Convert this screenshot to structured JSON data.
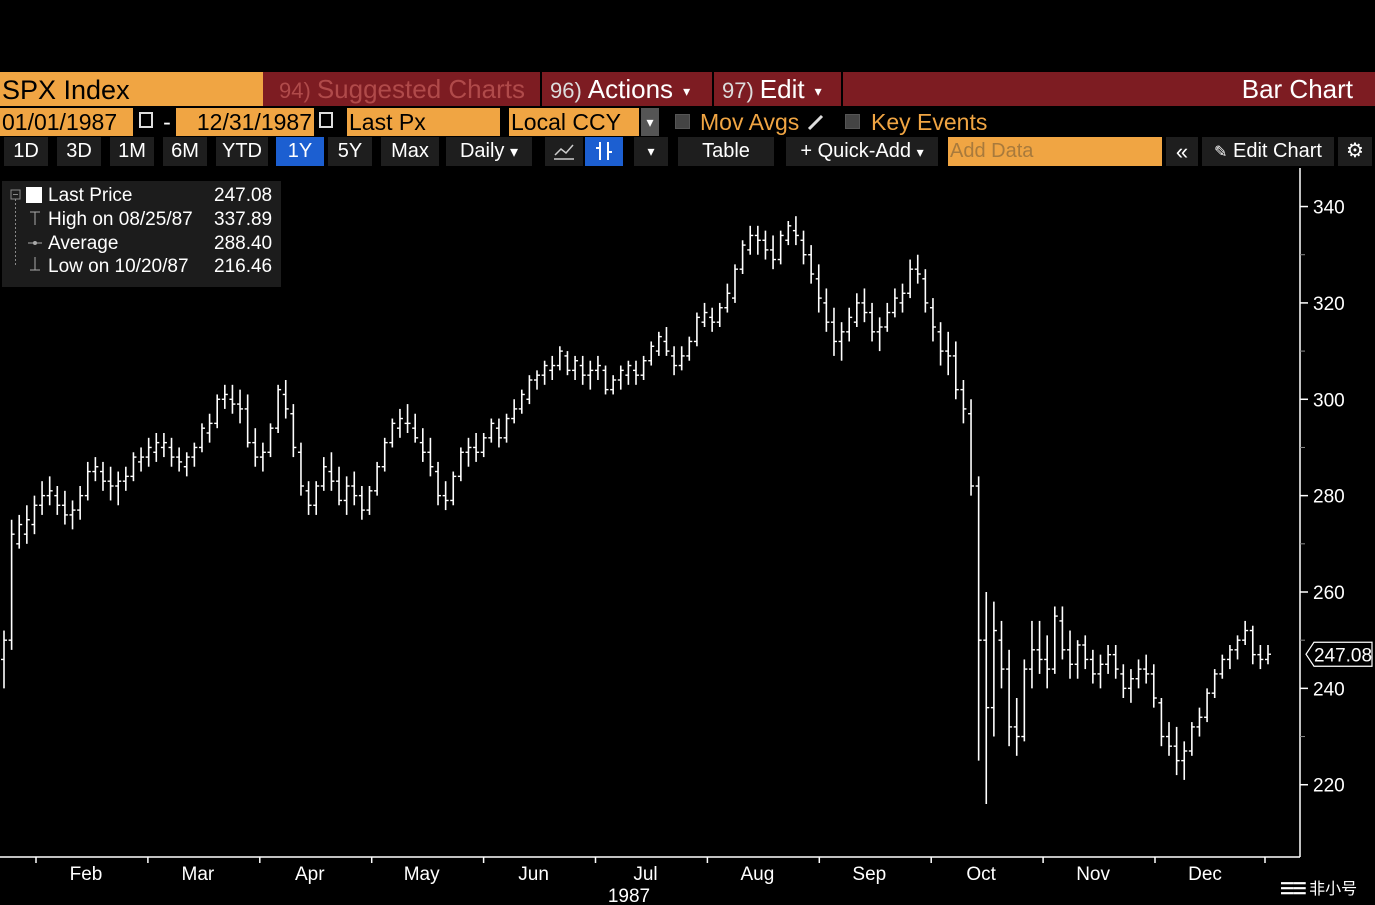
{
  "header": {
    "ticker": "SPX Index",
    "suggested_num": "94)",
    "suggested_label": "Suggested Charts",
    "actions_num": "96)",
    "actions_label": "Actions",
    "edit_num": "97)",
    "edit_label": "Edit",
    "chart_type": "Bar Chart",
    "caret": "▾"
  },
  "controls": {
    "start_date": "01/01/1987",
    "date_sep": "-",
    "end_date": "12/31/1987",
    "field": "Last Px",
    "currency": "Local CCY",
    "mov_avgs": "Mov Avgs",
    "key_events": "Key Events"
  },
  "toolbar": {
    "ranges": [
      "1D",
      "3D",
      "1M",
      "6M",
      "YTD",
      "1Y",
      "5Y",
      "Max"
    ],
    "selected_range": "1Y",
    "frequency": "Daily",
    "table": "Table",
    "quick_add": "+ Quick-Add",
    "add_data_placeholder": "Add Data",
    "edit_chart": "Edit Chart"
  },
  "legend": {
    "last_label": "Last Price",
    "last_value": "247.08",
    "high_label": "High on 08/25/87",
    "high_value": "337.89",
    "avg_label": "Average",
    "avg_value": "288.40",
    "low_label": "Low on 10/20/87",
    "low_value": "216.46"
  },
  "watermark": "非小号",
  "colors": {
    "accent_orange": "#f0a543",
    "header_red": "#7d1c22",
    "selected_blue": "#1c5fd1"
  },
  "chart_data": {
    "type": "bar",
    "title": "",
    "x_year_label": "1987",
    "month_labels": [
      "Feb",
      "Mar",
      "Apr",
      "May",
      "Jun",
      "Jul",
      "Aug",
      "Sep",
      "Oct",
      "Nov",
      "Dec"
    ],
    "yticks": [
      220,
      240,
      260,
      280,
      300,
      320,
      340
    ],
    "ylim": [
      205,
      348
    ],
    "last_price": 247.08,
    "series": [
      {
        "values": [
          [
            246,
            252,
            240,
            250
          ],
          [
            250,
            275,
            248,
            272
          ],
          [
            270,
            276,
            269,
            274
          ],
          [
            272,
            278,
            270,
            275
          ],
          [
            274,
            280,
            272,
            278
          ],
          [
            278,
            283,
            276,
            280
          ],
          [
            280,
            284,
            278,
            281
          ],
          [
            280,
            282,
            276,
            278
          ],
          [
            278,
            281,
            274,
            276
          ],
          [
            276,
            279,
            273,
            277
          ],
          [
            277,
            282,
            275,
            280
          ],
          [
            280,
            287,
            279,
            285
          ],
          [
            285,
            288,
            283,
            286
          ],
          [
            285,
            287,
            281,
            283
          ],
          [
            283,
            286,
            279,
            282
          ],
          [
            282,
            285,
            278,
            283
          ],
          [
            283,
            286,
            281,
            284
          ],
          [
            284,
            289,
            283,
            288
          ],
          [
            287,
            290,
            285,
            288
          ],
          [
            288,
            292,
            286,
            290
          ],
          [
            289,
            293,
            287,
            291
          ],
          [
            290,
            293,
            288,
            291
          ],
          [
            290,
            292,
            286,
            288
          ],
          [
            288,
            290,
            285,
            287
          ],
          [
            286,
            289,
            284,
            288
          ],
          [
            288,
            291,
            286,
            290
          ],
          [
            290,
            295,
            289,
            294
          ],
          [
            293,
            297,
            291,
            295
          ],
          [
            295,
            301,
            294,
            300
          ],
          [
            300,
            303,
            298,
            301
          ],
          [
            300,
            303,
            297,
            299
          ],
          [
            299,
            302,
            295,
            298
          ],
          [
            298,
            301,
            290,
            291
          ],
          [
            291,
            294,
            286,
            288
          ],
          [
            288,
            291,
            285,
            289
          ],
          [
            289,
            295,
            288,
            294
          ],
          [
            294,
            303,
            293,
            302
          ],
          [
            301,
            304,
            296,
            298
          ],
          [
            297,
            299,
            288,
            290
          ],
          [
            289,
            291,
            280,
            282
          ],
          [
            281,
            283,
            276,
            278
          ],
          [
            278,
            283,
            276,
            282
          ],
          [
            282,
            288,
            281,
            286
          ],
          [
            285,
            289,
            281,
            283
          ],
          [
            283,
            286,
            278,
            279
          ],
          [
            279,
            284,
            276,
            282
          ],
          [
            282,
            285,
            278,
            280
          ],
          [
            280,
            282,
            275,
            277
          ],
          [
            277,
            282,
            276,
            281
          ],
          [
            281,
            287,
            280,
            286
          ],
          [
            286,
            292,
            285,
            291
          ],
          [
            291,
            296,
            290,
            295
          ],
          [
            294,
            298,
            292,
            296
          ],
          [
            295,
            299,
            293,
            295
          ],
          [
            294,
            297,
            291,
            292
          ],
          [
            291,
            294,
            287,
            289
          ],
          [
            289,
            292,
            284,
            286
          ],
          [
            285,
            287,
            278,
            280
          ],
          [
            280,
            283,
            277,
            279
          ],
          [
            279,
            285,
            278,
            284
          ],
          [
            284,
            290,
            283,
            289
          ],
          [
            289,
            292,
            286,
            290
          ],
          [
            290,
            293,
            287,
            289
          ],
          [
            289,
            293,
            288,
            292
          ],
          [
            292,
            296,
            291,
            295
          ],
          [
            294,
            296,
            290,
            292
          ],
          [
            292,
            297,
            291,
            296
          ],
          [
            296,
            300,
            295,
            298
          ],
          [
            298,
            302,
            297,
            301
          ],
          [
            300,
            305,
            299,
            304
          ],
          [
            304,
            306,
            302,
            305
          ],
          [
            305,
            308,
            303,
            307
          ],
          [
            306,
            309,
            304,
            307
          ],
          [
            307,
            311,
            306,
            310
          ],
          [
            309,
            310,
            305,
            306
          ],
          [
            306,
            309,
            304,
            308
          ],
          [
            307,
            309,
            303,
            305
          ],
          [
            305,
            308,
            302,
            306
          ],
          [
            306,
            309,
            304,
            307
          ],
          [
            306,
            307,
            301,
            302
          ],
          [
            302,
            305,
            301,
            304
          ],
          [
            304,
            307,
            302,
            306
          ],
          [
            305,
            308,
            303,
            307
          ],
          [
            306,
            308,
            303,
            305
          ],
          [
            305,
            309,
            304,
            308
          ],
          [
            308,
            312,
            307,
            311
          ],
          [
            310,
            314,
            309,
            313
          ],
          [
            312,
            315,
            309,
            310
          ],
          [
            309,
            311,
            305,
            307
          ],
          [
            307,
            311,
            306,
            309
          ],
          [
            309,
            313,
            308,
            312
          ],
          [
            312,
            318,
            311,
            317
          ],
          [
            316,
            320,
            315,
            318
          ],
          [
            317,
            319,
            314,
            316
          ],
          [
            316,
            320,
            315,
            319
          ],
          [
            319,
            324,
            318,
            322
          ],
          [
            321,
            328,
            320,
            327
          ],
          [
            327,
            333,
            326,
            332
          ],
          [
            331,
            336,
            330,
            334
          ],
          [
            334,
            336,
            330,
            333
          ],
          [
            333,
            335,
            329,
            331
          ],
          [
            331,
            334,
            327,
            329
          ],
          [
            329,
            335,
            328,
            334
          ],
          [
            333,
            337,
            332,
            336
          ],
          [
            335,
            338,
            332,
            334
          ],
          [
            333,
            335,
            328,
            330
          ],
          [
            330,
            332,
            324,
            326
          ],
          [
            325,
            328,
            318,
            321
          ],
          [
            320,
            323,
            314,
            316
          ],
          [
            316,
            319,
            309,
            312
          ],
          [
            312,
            316,
            308,
            314
          ],
          [
            314,
            319,
            312,
            317
          ],
          [
            316,
            322,
            315,
            320
          ],
          [
            320,
            323,
            316,
            318
          ],
          [
            318,
            320,
            312,
            314
          ],
          [
            314,
            317,
            310,
            315
          ],
          [
            315,
            320,
            314,
            318
          ],
          [
            318,
            323,
            317,
            321
          ],
          [
            320,
            324,
            318,
            322
          ],
          [
            322,
            329,
            321,
            327
          ],
          [
            327,
            330,
            324,
            326
          ],
          [
            325,
            327,
            318,
            320
          ],
          [
            319,
            321,
            312,
            315
          ],
          [
            314,
            316,
            307,
            310
          ],
          [
            310,
            314,
            305,
            309
          ],
          [
            309,
            312,
            300,
            302
          ],
          [
            302,
            304,
            295,
            298
          ],
          [
            297,
            300,
            280,
            282
          ],
          [
            282,
            284,
            225,
            250
          ],
          [
            250,
            260,
            216,
            236
          ],
          [
            236,
            258,
            230,
            252
          ],
          [
            250,
            254,
            240,
            244
          ],
          [
            244,
            248,
            228,
            232
          ],
          [
            232,
            238,
            226,
            230
          ],
          [
            230,
            246,
            229,
            244
          ],
          [
            244,
            254,
            240,
            248
          ],
          [
            248,
            254,
            243,
            246
          ],
          [
            246,
            251,
            240,
            244
          ],
          [
            244,
            257,
            243,
            255
          ],
          [
            254,
            257,
            246,
            248
          ],
          [
            248,
            252,
            242,
            245
          ],
          [
            245,
            250,
            242,
            249
          ],
          [
            249,
            251,
            244,
            246
          ],
          [
            246,
            248,
            241,
            243
          ],
          [
            243,
            247,
            240,
            245
          ],
          [
            245,
            249,
            243,
            247
          ],
          [
            247,
            249,
            242,
            244
          ],
          [
            243,
            245,
            238,
            240
          ],
          [
            240,
            244,
            237,
            242
          ],
          [
            242,
            246,
            240,
            244
          ],
          [
            244,
            247,
            241,
            243
          ],
          [
            243,
            245,
            236,
            238
          ],
          [
            237,
            238,
            228,
            230
          ],
          [
            230,
            233,
            226,
            228
          ],
          [
            228,
            232,
            222,
            225
          ],
          [
            225,
            229,
            221,
            227
          ],
          [
            227,
            233,
            226,
            232
          ],
          [
            232,
            236,
            230,
            234
          ],
          [
            234,
            240,
            233,
            239
          ],
          [
            239,
            244,
            238,
            243
          ],
          [
            243,
            247,
            242,
            246
          ],
          [
            246,
            249,
            244,
            248
          ],
          [
            248,
            251,
            246,
            250
          ],
          [
            250,
            254,
            249,
            252
          ],
          [
            252,
            253,
            245,
            247
          ],
          [
            247,
            249,
            244,
            246
          ],
          [
            246,
            249,
            245,
            247.08
          ]
        ]
      }
    ]
  }
}
